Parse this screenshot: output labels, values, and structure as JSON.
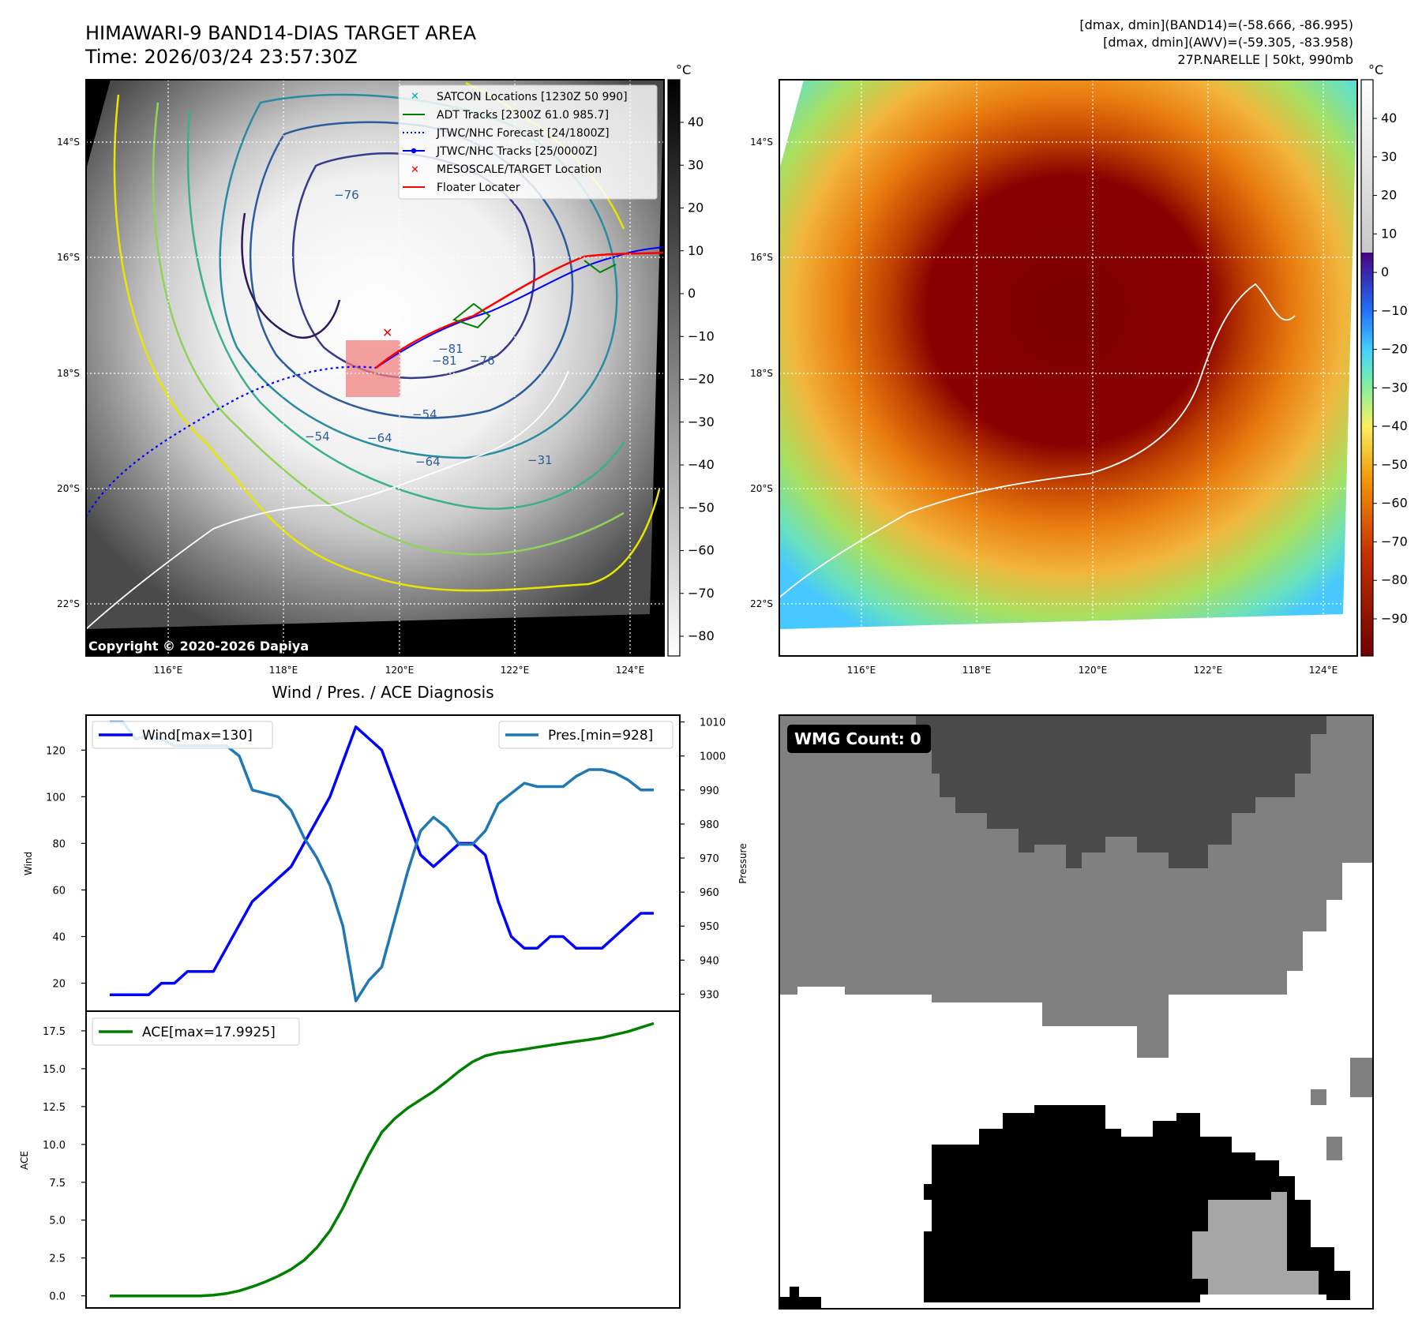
{
  "header": {
    "title": "HIMAWARI-9 BAND14-DIAS TARGET AREA",
    "time": "Time: 2026/03/24 23:57:30Z",
    "stat_band14": "[dmax, dmin](BAND14)=(-58.666, -86.995)",
    "stat_awv": "[dmax, dmin](AWV)=(-59.305, -83.958)",
    "storm_info": "27P.NARELLE | 50kt, 990mb"
  },
  "colors": {
    "wind": "#0000ff",
    "pressure": "#1f77b4",
    "ace": "#008000",
    "floater": "#ff0000",
    "adt": "#008000",
    "satcon": "#00aaaa",
    "wmg_dark": "#4a4a4a",
    "wmg_mid": "#808080",
    "wmg_light": "#a6a6a6"
  },
  "map_ir": {
    "unit": "°C",
    "copyright": "Copyright © 2020-2026 Dapiya",
    "lat_labels": [
      "14°S",
      "16°S",
      "18°S",
      "20°S",
      "22°S"
    ],
    "lon_labels": [
      "116°E",
      "118°E",
      "120°E",
      "122°E",
      "124°E"
    ],
    "colorbar_ticks": [
      "40",
      "30",
      "20",
      "10",
      "0",
      "−10",
      "−20",
      "−30",
      "−40",
      "−50",
      "−60",
      "−70",
      "−80"
    ],
    "contour_labels": [
      "−76",
      "−81",
      "−76",
      "−54",
      "−64",
      "−54",
      "−81",
      "−64",
      "−31"
    ],
    "legend": [
      {
        "label": "SATCON Locations [1230Z 50 990]",
        "icon": "x-marker-cyan"
      },
      {
        "label": "ADT Tracks [2300Z 61.0 985.7]",
        "icon": "line-green"
      },
      {
        "label": "JTWC/NHC Forecast [24/1800Z]",
        "icon": "dotted-line-blue"
      },
      {
        "label": "JTWC/NHC Tracks [25/0000Z]",
        "icon": "line-dot-blue"
      },
      {
        "label": "MESOSCALE/TARGET Location",
        "icon": "x-marker-red"
      },
      {
        "label": "Floater Locater",
        "icon": "line-red"
      }
    ]
  },
  "map_awv": {
    "unit": "°C",
    "lat_labels": [
      "14°S",
      "16°S",
      "18°S",
      "20°S",
      "22°S"
    ],
    "lon_labels": [
      "116°E",
      "118°E",
      "120°E",
      "122°E",
      "124°E"
    ],
    "colorbar_ticks": [
      "40",
      "30",
      "20",
      "10",
      "0",
      "−10",
      "−20",
      "−30",
      "−40",
      "−50",
      "−60",
      "−70",
      "−80",
      "−90"
    ]
  },
  "wmg": {
    "count_label": "WMG Count: 0"
  },
  "chart_data": [
    {
      "type": "line",
      "title": "Wind / Pres. / ACE Diagnosis",
      "ylabel": "Wind",
      "ylabel_right": "Pressure",
      "ylim": [
        8,
        135
      ],
      "ylim_right": [
        925,
        1012
      ],
      "yticks": [
        20,
        40,
        60,
        80,
        100,
        120
      ],
      "yticks_right": [
        930,
        940,
        950,
        960,
        970,
        980,
        990,
        1000,
        1010
      ],
      "series": [
        {
          "name": "Wind[max=130]",
          "axis": "left",
          "values": [
            15,
            15,
            15,
            15,
            20,
            20,
            25,
            25,
            25,
            35,
            45,
            55,
            60,
            65,
            70,
            80,
            90,
            100,
            115,
            130,
            125,
            120,
            105,
            90,
            75,
            70,
            75,
            80,
            80,
            75,
            55,
            40,
            35,
            35,
            40,
            40,
            35,
            35,
            35,
            40,
            45,
            50,
            50
          ]
        },
        {
          "name": "Pres.[min=928]",
          "axis": "right",
          "values": [
            1010,
            1010,
            1005,
            1006,
            1005,
            1003,
            1003,
            1003,
            1003,
            1003,
            1000,
            990,
            989,
            988,
            984,
            976,
            970,
            962,
            950,
            928,
            934,
            938,
            952,
            966,
            978,
            982,
            979,
            974,
            974,
            978,
            986,
            989,
            992,
            991,
            991,
            991,
            994,
            996,
            996,
            995,
            993,
            990,
            990
          ]
        }
      ]
    },
    {
      "type": "line",
      "ylabel": "ACE",
      "ylim": [
        -0.8,
        18.8
      ],
      "yticks": [
        "0.0",
        "2.5",
        "5.0",
        "7.5",
        "10.0",
        "12.5",
        "15.0",
        "17.5"
      ],
      "series": [
        {
          "name": "ACE[max=17.9925]",
          "values": [
            0,
            0,
            0,
            0,
            0,
            0,
            0,
            0,
            0.05,
            0.15,
            0.33,
            0.6,
            0.92,
            1.3,
            1.75,
            2.35,
            3.2,
            4.3,
            5.8,
            7.6,
            9.3,
            10.8,
            11.7,
            12.4,
            12.95,
            13.5,
            14.15,
            14.85,
            15.45,
            15.85,
            16.05,
            16.15,
            16.28,
            16.42,
            16.55,
            16.68,
            16.8,
            16.92,
            17.05,
            17.25,
            17.45,
            17.72,
            17.99
          ]
        }
      ]
    }
  ]
}
